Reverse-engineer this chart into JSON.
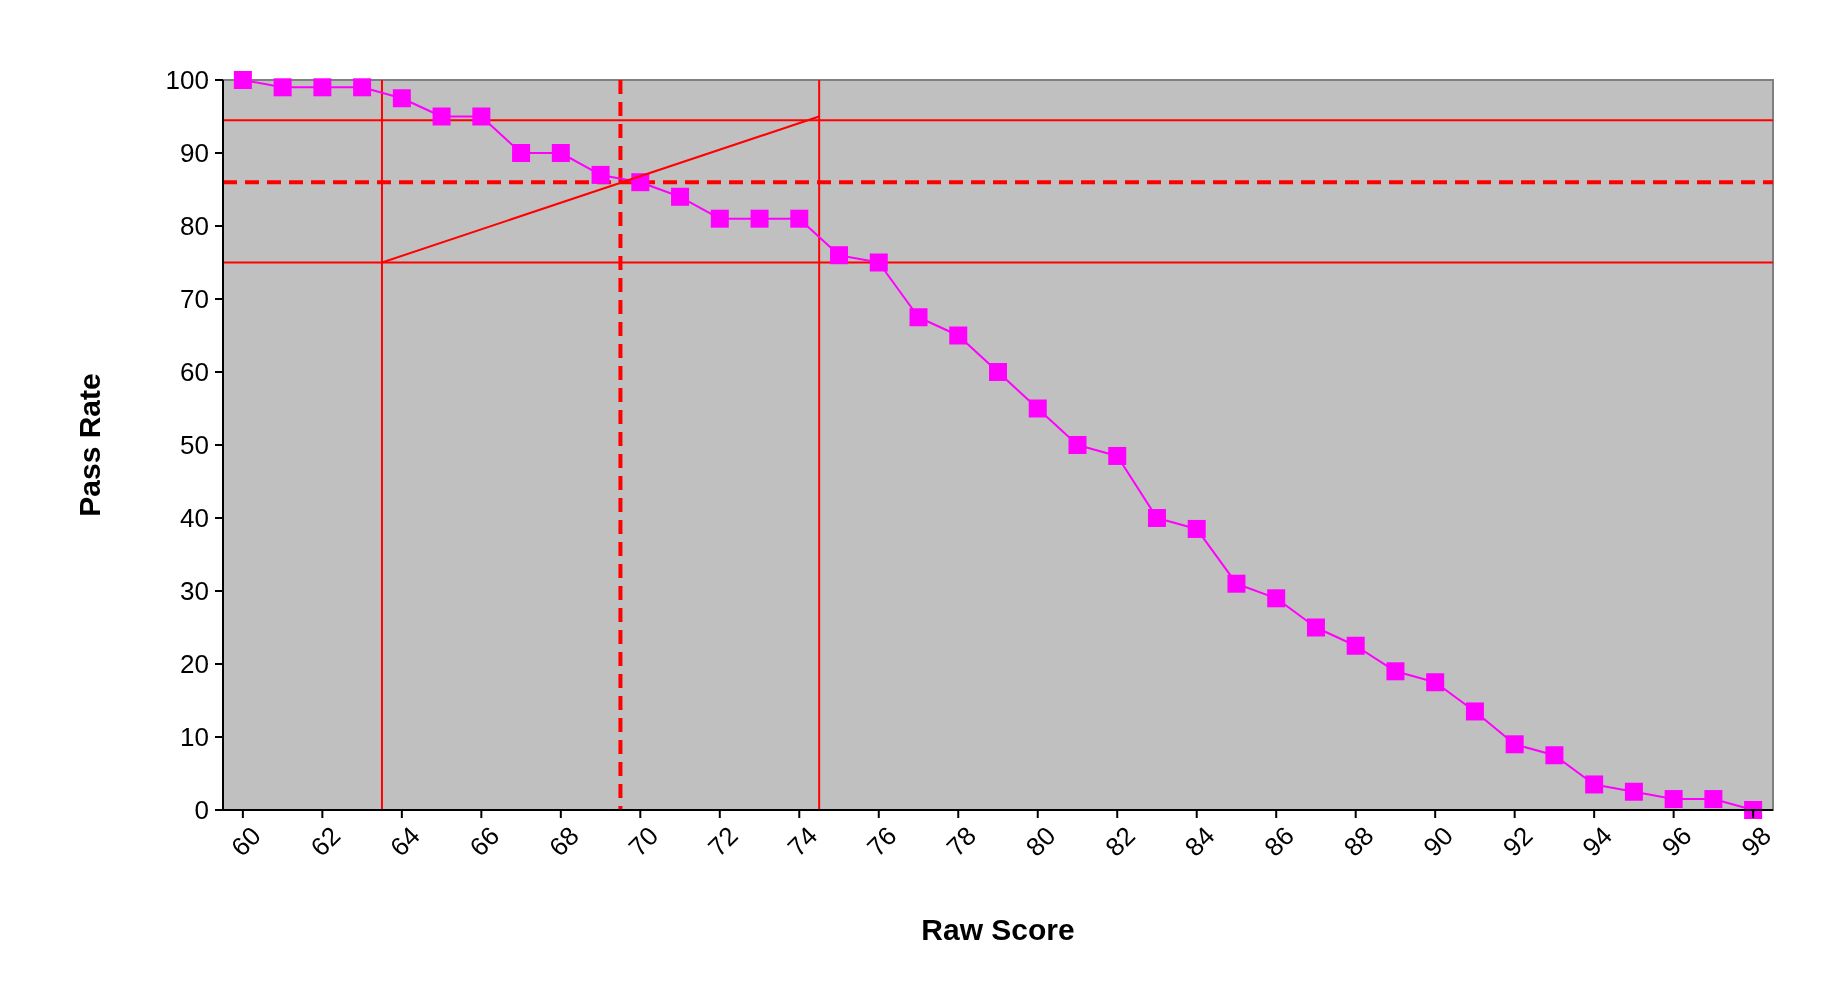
{
  "chart_data": {
    "type": "line",
    "xlabel": "Raw Score",
    "ylabel": "Pass Rate",
    "x": [
      60,
      61,
      62,
      63,
      64,
      65,
      66,
      67,
      68,
      69,
      70,
      71,
      72,
      73,
      74,
      75,
      76,
      77,
      78,
      79,
      80,
      81,
      82,
      83,
      84,
      85,
      86,
      87,
      88,
      89,
      90,
      91,
      92,
      93,
      94,
      95,
      96,
      97,
      98
    ],
    "series": [
      {
        "color": "#ff00ff",
        "values": [
          100,
          99,
          99,
          99,
          97.5,
          95,
          95,
          90,
          90,
          87,
          86,
          84,
          81,
          81,
          81,
          76,
          75,
          67.5,
          65,
          60,
          55,
          50,
          48.5,
          40,
          38.5,
          31,
          29,
          25,
          22.5,
          19,
          17.5,
          13.5,
          9,
          7.5,
          3.5,
          2.5,
          1.5,
          1.5,
          0
        ]
      },
      {
        "type": "line",
        "color": "#ff0000",
        "marker": "none",
        "x": [
          63.5,
          74.5
        ],
        "values": [
          75,
          95
        ]
      }
    ],
    "xlim": [
      59.5,
      98.5
    ],
    "xticks": [
      60,
      62,
      64,
      66,
      68,
      70,
      72,
      74,
      76,
      78,
      80,
      82,
      84,
      86,
      88,
      90,
      92,
      94,
      96,
      98
    ],
    "ylim": [
      0,
      100
    ],
    "yticks": [
      0,
      10,
      20,
      30,
      40,
      50,
      60,
      70,
      80,
      90,
      100
    ],
    "ref_lines": [
      {
        "axis": "y",
        "value": 94.5,
        "color": "#ff0000",
        "line_style": "solid"
      },
      {
        "axis": "y",
        "value": 86,
        "color": "#ff0000",
        "line_style": "dashed"
      },
      {
        "axis": "y",
        "value": 75,
        "color": "#ff0000",
        "line_style": "solid"
      },
      {
        "axis": "x",
        "value": 63.5,
        "color": "#ff0000",
        "line_style": "solid"
      },
      {
        "axis": "x",
        "value": 69.5,
        "color": "#ff0000",
        "line_style": "dashed"
      },
      {
        "axis": "x",
        "value": 74.5,
        "color": "#ff0000",
        "line_style": "solid"
      }
    ],
    "grid": false,
    "marker": "square",
    "line_style": "solid"
  }
}
